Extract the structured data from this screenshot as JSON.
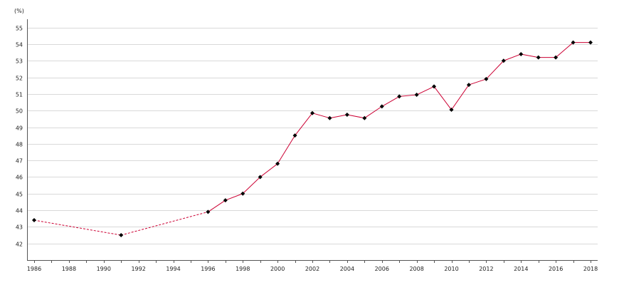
{
  "chart_data": {
    "type": "line",
    "unit_label": "(%)",
    "title": "",
    "xlabel": "",
    "ylabel": "",
    "xlim": [
      1986,
      2018
    ],
    "ylim": [
      41,
      55.5
    ],
    "x_ticks": [
      1986,
      1988,
      1990,
      1992,
      1994,
      1996,
      1998,
      2000,
      2002,
      2004,
      2006,
      2008,
      2010,
      2012,
      2014,
      2016,
      2018
    ],
    "x_tick_labels": [
      "1986",
      "1988",
      "1990",
      "1992",
      "1994",
      "1996",
      "1998",
      "2000",
      "2002",
      "2004",
      "2006",
      "2008",
      "2010",
      "2012",
      "2014",
      "2016",
      "2018"
    ],
    "y_ticks": [
      42,
      43,
      44,
      45,
      46,
      47,
      48,
      49,
      50,
      51,
      52,
      53,
      54,
      55
    ],
    "y_tick_labels": [
      "42",
      "43",
      "44",
      "45",
      "46",
      "47",
      "48",
      "49",
      "50",
      "51",
      "52",
      "53",
      "54",
      "55"
    ],
    "grid": true,
    "line_color": "#cc0033",
    "marker_color": "#000000",
    "series": [
      {
        "points": [
          {
            "x": 1986,
            "y": 43.4
          },
          {
            "x": 1991,
            "y": 42.5
          },
          {
            "x": 1996,
            "y": 43.9
          },
          {
            "x": 1997,
            "y": 44.6
          },
          {
            "x": 1998,
            "y": 45.0
          },
          {
            "x": 1999,
            "y": 46.0
          },
          {
            "x": 2000,
            "y": 46.8
          },
          {
            "x": 2001,
            "y": 48.5
          },
          {
            "x": 2002,
            "y": 49.85
          },
          {
            "x": 2003,
            "y": 49.55
          },
          {
            "x": 2004,
            "y": 49.75
          },
          {
            "x": 2005,
            "y": 49.55
          },
          {
            "x": 2006,
            "y": 50.25
          },
          {
            "x": 2007,
            "y": 50.85
          },
          {
            "x": 2008,
            "y": 50.95
          },
          {
            "x": 2009,
            "y": 51.45
          },
          {
            "x": 2010,
            "y": 50.05
          },
          {
            "x": 2011,
            "y": 51.55
          },
          {
            "x": 2012,
            "y": 51.9
          },
          {
            "x": 2013,
            "y": 53.0
          },
          {
            "x": 2014,
            "y": 53.4
          },
          {
            "x": 2015,
            "y": 53.2
          },
          {
            "x": 2016,
            "y": 53.2
          },
          {
            "x": 2017,
            "y": 54.1
          },
          {
            "x": 2018,
            "y": 54.1
          }
        ],
        "dashed_until_x": 1996
      }
    ]
  }
}
